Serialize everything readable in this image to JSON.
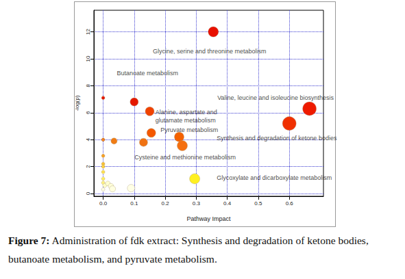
{
  "chart_data": {
    "type": "scatter",
    "x_label": "Pathway Impact",
    "y_label": "-log(p)",
    "xlim": [
      -0.03,
      0.71
    ],
    "ylim": [
      -0.2,
      13.6
    ],
    "xticks": [
      {
        "value": 0,
        "label": "0.0"
      },
      {
        "value": 0.1,
        "label": "0.1"
      },
      {
        "value": 0.2,
        "label": "0.2"
      },
      {
        "value": 0.3,
        "label": "0.3"
      },
      {
        "value": 0.4,
        "label": "0.4"
      },
      {
        "value": 0.5,
        "label": "0.5"
      },
      {
        "value": 0.6,
        "label": "0.6"
      }
    ],
    "yticks": [
      0,
      2,
      4,
      6,
      8,
      10,
      12
    ],
    "grid": true,
    "x": [
      0.355,
      0.665,
      0.6,
      0.1,
      0.15,
      0.155,
      0.245,
      0.255,
      0.13,
      0.035,
      0.295,
      0.0,
      0.0,
      0.0,
      0.0,
      0.0,
      0.0,
      0.0,
      0.0,
      0.005,
      0.015,
      0.025,
      0.03,
      0.09,
      0.0
    ],
    "values": [
      12.0,
      6.3,
      5.2,
      6.8,
      6.1,
      4.5,
      4.2,
      3.55,
      3.8,
      3.9,
      1.1,
      7.1,
      4.0,
      2.8,
      2.2,
      2.0,
      1.6,
      1.1,
      0.8,
      0.6,
      0.75,
      0.55,
      0.35,
      0.4,
      0.3
    ],
    "sizes": [
      15,
      20,
      20,
      12,
      13,
      13,
      14,
      15,
      12,
      9,
      15,
      5,
      5,
      5,
      5,
      5,
      5,
      5,
      5,
      6,
      7,
      8,
      9,
      11,
      5
    ],
    "colors": [
      "#e81000",
      "#ee1a00",
      "#f03000",
      "#e41800",
      "#f04200",
      "#f45800",
      "#f46200",
      "#f57010",
      "#f07212",
      "#f07c14",
      "#fff022",
      "#e41800",
      "#f08020",
      "#f7a024",
      "#fac030",
      "#fcd040",
      "#fde050",
      "#ffee60",
      "#fff380",
      "#ffffc8",
      "#ffffd0",
      "#ffffd8",
      "#ffffe0",
      "#ffffe6",
      "#ffffe6"
    ],
    "annotations": [
      {
        "text": "Glycine, serine and threonine metabolism",
        "x": 0.16,
        "y": 10.55
      },
      {
        "text": "Butanoate metabolism",
        "x": 0.044,
        "y": 8.93
      },
      {
        "text": "Valine, leucine and isoleucine biosynthesis",
        "x": 0.368,
        "y": 7.1
      },
      {
        "text": "Alanine, aspartate and\nglutamate metabolism",
        "x": 0.168,
        "y": 5.74
      },
      {
        "text": "Pyruvate metabolism",
        "x": 0.185,
        "y": 4.72
      },
      {
        "text": "Synthesis and degradation of ketone bodies",
        "x": 0.366,
        "y": 4.11
      },
      {
        "text": "Cysteine and methionine metabolism",
        "x": 0.101,
        "y": 2.69
      },
      {
        "text": "Glycoxylate and dicarboxylate metabolism",
        "x": 0.366,
        "y": 1.17
      }
    ],
    "caption": {
      "label": "Figure 7:",
      "text": "Administration of fdk extract: Synthesis and degradation of ketone bodies, butanoate metabolism, and pyruvate metabolism."
    }
  }
}
